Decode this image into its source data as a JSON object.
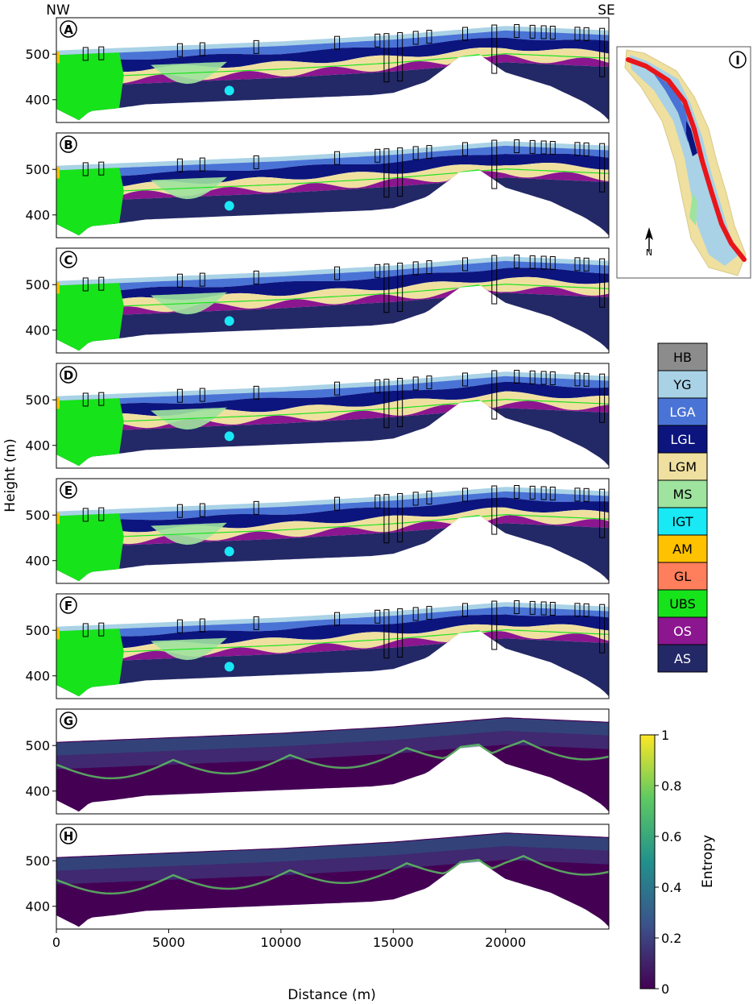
{
  "figure": {
    "corner_left": "NW",
    "corner_right": "SE",
    "ylabel": "Height (m)",
    "xlabel": "Distance (m)",
    "x_ticks": [
      "0",
      "5000",
      "10000",
      "15000",
      "20000"
    ],
    "y_ticks": [
      "400",
      "500"
    ]
  },
  "panels": [
    {
      "letter": "A",
      "kind": "litho"
    },
    {
      "letter": "B",
      "kind": "litho"
    },
    {
      "letter": "C",
      "kind": "litho"
    },
    {
      "letter": "D",
      "kind": "litho"
    },
    {
      "letter": "E",
      "kind": "litho"
    },
    {
      "letter": "F",
      "kind": "litho"
    },
    {
      "letter": "G",
      "kind": "entropy"
    },
    {
      "letter": "H",
      "kind": "entropy"
    }
  ],
  "map_inset": {
    "letter": "I",
    "north_label": "N"
  },
  "legend": {
    "items": [
      {
        "code": "HB",
        "color": "#8c8c8c"
      },
      {
        "code": "YG",
        "color": "#a9d2e6"
      },
      {
        "code": "LGA",
        "color": "#4a73d6"
      },
      {
        "code": "LGL",
        "color": "#0c157e"
      },
      {
        "code": "LGM",
        "color": "#efe0a0"
      },
      {
        "code": "MS",
        "color": "#9ee39e"
      },
      {
        "code": "IGT",
        "color": "#18e9f5"
      },
      {
        "code": "AM",
        "color": "#ffc200"
      },
      {
        "code": "GL",
        "color": "#ff7e5c"
      },
      {
        "code": "UBS",
        "color": "#17e31b"
      },
      {
        "code": "OS",
        "color": "#8c1690"
      },
      {
        "code": "AS",
        "color": "#232866"
      }
    ]
  },
  "colorbar": {
    "label": "Entropy",
    "ticks": [
      "0",
      "0.2",
      "0.4",
      "0.6",
      "0.8",
      "1"
    ],
    "colors": [
      "#440154",
      "#3b528b",
      "#21918c",
      "#5ec962",
      "#fde725"
    ]
  },
  "chart_data": {
    "type": "heatmap",
    "title": "",
    "xlabel": "Distance (m)",
    "ylabel": "Height (m)",
    "xlim": [
      0,
      24600
    ],
    "ylim": [
      350,
      580
    ],
    "surface_top": {
      "x": [
        0,
        5000,
        10000,
        15000,
        20000,
        24600
      ],
      "y": [
        508,
        518,
        528,
        542,
        562,
        552
      ]
    },
    "bedrock": {
      "x": [
        0,
        1000,
        1500,
        2500,
        4000,
        14000,
        15000,
        16500,
        18000,
        18800,
        20000,
        22000,
        23500,
        24300,
        24600
      ],
      "y": [
        380,
        355,
        375,
        380,
        390,
        410,
        415,
        440,
        495,
        500,
        460,
        430,
        395,
        370,
        355
      ]
    },
    "boreholes_x": [
      1300,
      2000,
      5500,
      6500,
      8900,
      12500,
      14300,
      14700,
      15300,
      16000,
      16600,
      18200,
      19500,
      20500,
      21200,
      21700,
      22100,
      23200,
      23600,
      24300
    ],
    "entropy_range": [
      0,
      1
    ]
  }
}
